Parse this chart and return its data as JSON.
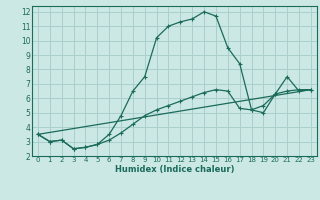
{
  "xlabel": "Humidex (Indice chaleur)",
  "bg_color": "#cce8e5",
  "grid_color": "#aacfcc",
  "line_color": "#1a6b5a",
  "spine_color": "#1a6b5a",
  "xlim": [
    -0.5,
    23.5
  ],
  "ylim": [
    2,
    12.4
  ],
  "xticks": [
    0,
    1,
    2,
    3,
    4,
    5,
    6,
    7,
    8,
    9,
    10,
    11,
    12,
    13,
    14,
    15,
    16,
    17,
    18,
    19,
    20,
    21,
    22,
    23
  ],
  "yticks": [
    2,
    3,
    4,
    5,
    6,
    7,
    8,
    9,
    10,
    11,
    12
  ],
  "line1_x": [
    0,
    1,
    2,
    3,
    4,
    5,
    6,
    7,
    8,
    9,
    10,
    11,
    12,
    13,
    14,
    15,
    16,
    17,
    18,
    19,
    20,
    21,
    22,
    23
  ],
  "line1_y": [
    3.5,
    3.0,
    3.1,
    2.5,
    2.6,
    2.8,
    3.5,
    4.8,
    6.5,
    7.5,
    10.2,
    11.0,
    11.3,
    11.5,
    12.0,
    11.7,
    9.5,
    8.4,
    5.2,
    5.0,
    6.3,
    6.5,
    6.6,
    6.6
  ],
  "line2_x": [
    0,
    1,
    2,
    3,
    4,
    5,
    6,
    7,
    8,
    9,
    10,
    11,
    12,
    13,
    14,
    15,
    16,
    17,
    18,
    19,
    20,
    21,
    22,
    23
  ],
  "line2_y": [
    3.5,
    3.0,
    3.1,
    2.5,
    2.6,
    2.8,
    3.1,
    3.6,
    4.2,
    4.8,
    5.2,
    5.5,
    5.8,
    6.1,
    6.4,
    6.6,
    6.5,
    5.3,
    5.2,
    5.5,
    6.3,
    7.5,
    6.5,
    6.6
  ],
  "line3_x": [
    0,
    23
  ],
  "line3_y": [
    3.5,
    6.6
  ]
}
